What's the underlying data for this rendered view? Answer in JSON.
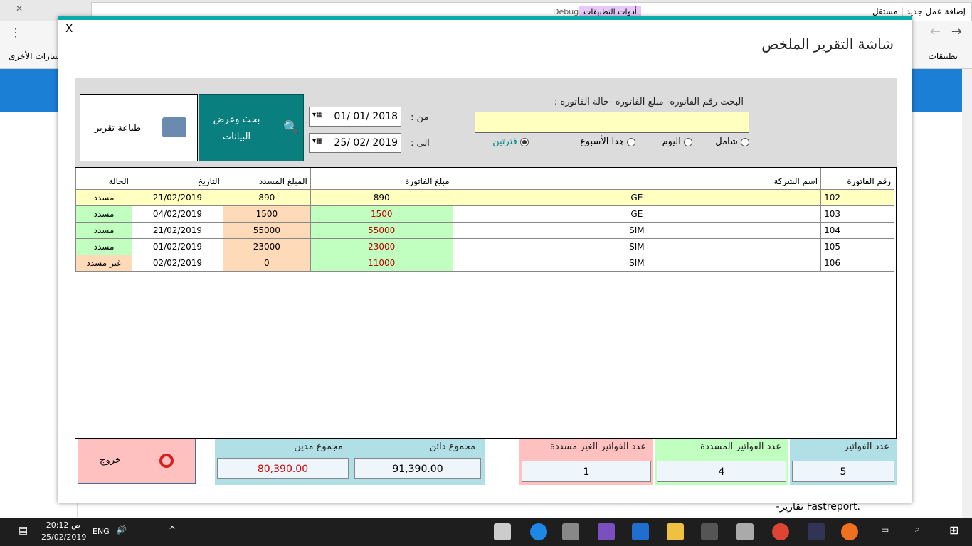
{
  "browser": {
    "tab_title": "إضافة عمل جديد | مستقل",
    "bookmark_apps": "تطبيقات",
    "bookmark_other": "إشارات الأخرى",
    "page_text": "-تقارير Fastreport.",
    "vs_tab": "أدوات التطبيقات",
    "vs_debug": "Debug"
  },
  "dialog": {
    "close": "X",
    "title": "شاشة التقرير الملخص",
    "search_label": "البحث رقم الفاتورة- مبلغ الفاتورة -حالة الفاتورة :",
    "search_value": "",
    "radios": [
      {
        "label": "شامل",
        "checked": false
      },
      {
        "label": "اليوم",
        "checked": false
      },
      {
        "label": "هذا الأسبوع",
        "checked": false
      },
      {
        "label": "فترتين",
        "checked": true
      }
    ],
    "from_label": "من :",
    "to_label": "الى :",
    "from_date": "01/ 01/ 2018",
    "to_date": "25/ 02/ 2019",
    "search_button": "بحث وعرض البيانات",
    "print_button": "طباعة تقرير"
  },
  "table": {
    "columns": [
      "رقم الفاتورة",
      "اسم الشركة",
      "مبلغ الفاتورة",
      "المبلغ المسدد",
      "التاريخ",
      "الحالة"
    ],
    "rows": [
      [
        "102",
        "GE",
        "890",
        "890",
        "21/02/2019",
        "مسدد"
      ],
      [
        "103",
        "GE",
        "1500",
        "1500",
        "04/02/2019",
        "مسدد"
      ],
      [
        "104",
        "SIM",
        "55000",
        "55000",
        "21/02/2019",
        "مسدد"
      ],
      [
        "105",
        "SIM",
        "23000",
        "23000",
        "01/02/2019",
        "مسدد"
      ],
      [
        "106",
        "SIM",
        "11000",
        "0",
        "02/02/2019",
        "غير مسدد"
      ]
    ]
  },
  "footer": {
    "count_label": "عدد الفواتير",
    "count": "5",
    "paid_label": "عدد الفواتير المسددة",
    "paid": "4",
    "unpaid_label": "عدد الفواتير الغير مسددة",
    "unpaid": "1",
    "credit_label": "مجموع دائن",
    "credit": "91,390.00",
    "debit_label": "مجموع مدين",
    "debit": "80,390.00",
    "exit": "خروج"
  },
  "taskbar": {
    "time": "20:12 ص",
    "date": "25/02/2019",
    "lang": "ENG"
  },
  "colors": {
    "accent": "#0aabab",
    "selected_row": "#ffffc0",
    "paid_green": "#c0ffc0",
    "peach": "#ffdab9",
    "search_bg": "#ffffc0",
    "debit_text": "#d00000"
  }
}
